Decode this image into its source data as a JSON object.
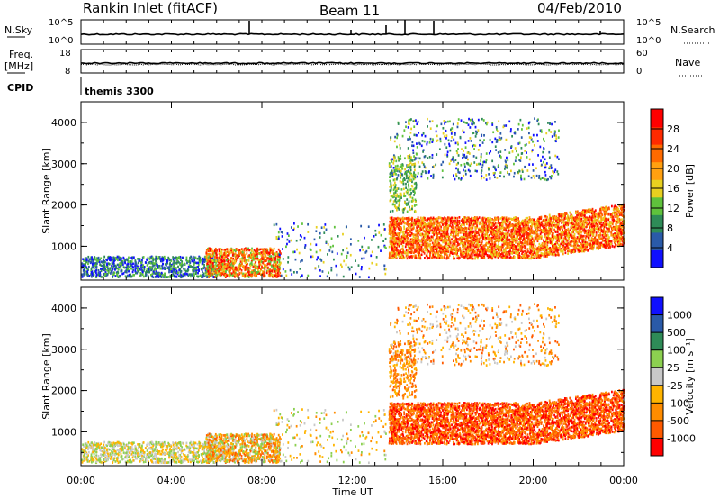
{
  "header": {
    "station": "Rankin Inlet (fitACF)",
    "beam": "Beam 11",
    "date": "04/Feb/2010"
  },
  "nsky_panel": {
    "left_label": "N.Sky",
    "left_ticks": [
      "10^5",
      "10^0"
    ],
    "right_label": "N.Search",
    "right_ticks": [
      "10^5",
      "10^0"
    ]
  },
  "freq_panel": {
    "left_label_1": "Freq.",
    "left_label_2": "[MHz]",
    "left_ticks": [
      "18",
      "8"
    ],
    "right_label": "Nave",
    "right_ticks": [
      "60",
      "0"
    ]
  },
  "cpid_panel": {
    "label": "CPID",
    "value": "themis 3300"
  },
  "colors": {
    "power_scale": [
      "#1010ff",
      "#2a5aa8",
      "#2e8b57",
      "#5fc23c",
      "#e8d020",
      "#ffa010",
      "#ff6a00",
      "#ff2a00",
      "#ff0000"
    ],
    "velocity_scale": [
      "#ff0000",
      "#ff5a00",
      "#ff8c00",
      "#ffb400",
      "#c8c8c8",
      "#8cd050",
      "#2e8b57",
      "#2a5aa8",
      "#1010ff"
    ]
  },
  "chart_data": [
    {
      "type": "heatmap",
      "name": "power",
      "ylabel": "Slant Range [km]",
      "xlabel": "",
      "ylim": [
        180,
        4500
      ],
      "y_ticks": [
        "4000",
        "3000",
        "2000",
        "1000"
      ],
      "y_tick_values": [
        4000,
        3000,
        2000,
        1000
      ],
      "colorbar_label": "Power [dB]",
      "colorbar_ticks": [
        "28",
        "24",
        "20",
        "16",
        "12",
        "8",
        "4"
      ],
      "colorbar_values": [
        28,
        24,
        20,
        16,
        12,
        8,
        4
      ]
    },
    {
      "type": "heatmap",
      "name": "velocity",
      "ylabel": "Slant Range [km]",
      "xlabel": "Time UT",
      "ylim": [
        180,
        4500
      ],
      "y_ticks": [
        "4000",
        "3000",
        "2000",
        "1000"
      ],
      "y_tick_values": [
        4000,
        3000,
        2000,
        1000
      ],
      "colorbar_label": "Velocity [m s⁻¹]",
      "colorbar_ticks": [
        "1000",
        "500",
        "100",
        "25",
        "-25",
        "-100",
        "-500",
        "-1000"
      ],
      "colorbar_values": [
        1000,
        500,
        100,
        25,
        -25,
        -100,
        -500,
        -1000
      ]
    }
  ],
  "time_axis": {
    "xlabel": "Time UT",
    "ticks": [
      "00:00",
      "04:00",
      "08:00",
      "12:00",
      "16:00",
      "20:00",
      "00:00"
    ],
    "tick_hours": [
      0,
      4,
      8,
      12,
      16,
      20,
      24
    ]
  }
}
